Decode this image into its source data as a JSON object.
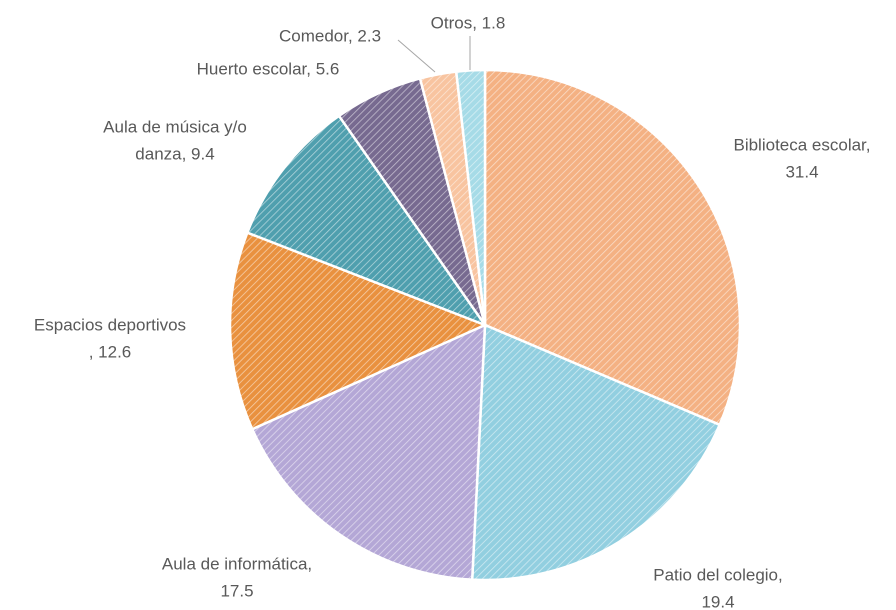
{
  "chart_data": {
    "type": "pie",
    "labels": [
      [
        "Biblioteca escolar,",
        "31.4"
      ],
      [
        "Patio del colegio,",
        "19.4"
      ],
      [
        "Aula de informática,",
        "17.5"
      ],
      [
        "Espacios deportivos",
        ", 12.6"
      ],
      [
        "Aula de música y/o",
        "danza, 9.4"
      ],
      [
        "Huerto escolar, 5.6"
      ],
      [
        "Comedor, 2.3"
      ],
      [
        "Otros, 1.8"
      ]
    ],
    "values": [
      31.4,
      19.4,
      17.5,
      12.6,
      9.4,
      5.6,
      2.3,
      1.8
    ],
    "colors": [
      "#f4b183",
      "#92cfe0",
      "#b4a7d6",
      "#e9913f",
      "#4f9fae",
      "#776a90",
      "#f8c4a0",
      "#a6dbe7"
    ]
  }
}
